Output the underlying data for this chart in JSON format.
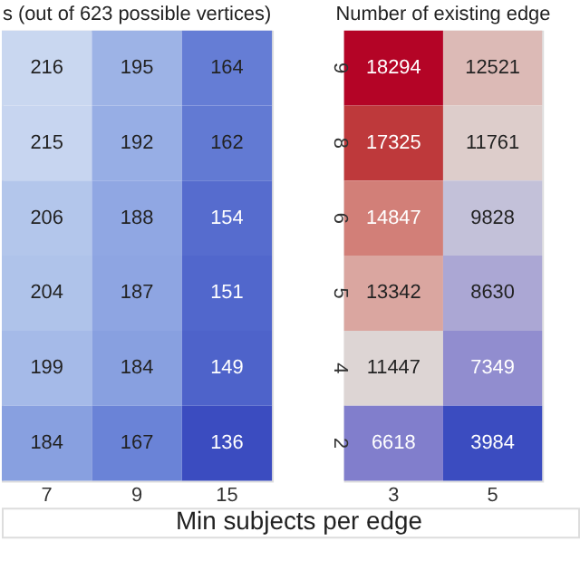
{
  "chart_data": [
    {
      "type": "heatmap",
      "title": "s (out of 623 possible vertices)",
      "xlabel": "Min subjects per edge",
      "categories": [
        "7",
        "9",
        "15"
      ],
      "y_categories": [
        "9",
        "8",
        "6",
        "5",
        "4",
        "2"
      ],
      "tick_labels": "x",
      "data_labels": true,
      "colors": [
        "#3b4cc0",
        "#c9d7f0"
      ],
      "cells": [
        [
          216,
          195,
          164
        ],
        [
          215,
          192,
          162
        ],
        [
          206,
          188,
          154
        ],
        [
          204,
          187,
          151
        ],
        [
          199,
          184,
          149
        ],
        [
          184,
          167,
          136
        ]
      ]
    },
    {
      "type": "heatmap",
      "title": "Number of existing edge",
      "categories": [
        "3",
        "5"
      ],
      "y_categories": [
        "9",
        "8",
        "6",
        "5",
        "4",
        "2"
      ],
      "data_labels": true,
      "colors": [
        "#3b4cc0",
        "#dddddd",
        "#b40426"
      ],
      "cells": [
        [
          18294,
          12521
        ],
        [
          17325,
          11761
        ],
        [
          14847,
          9828
        ],
        [
          13342,
          8630
        ],
        [
          11447,
          7349
        ],
        [
          6618,
          3984
        ]
      ]
    }
  ]
}
